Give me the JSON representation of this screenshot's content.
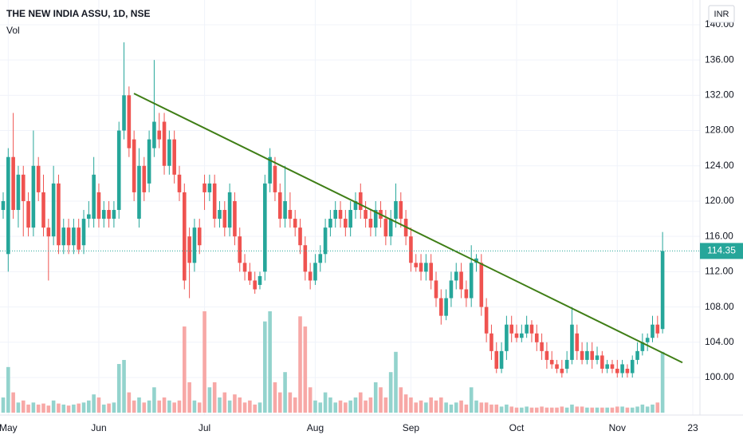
{
  "chart_data": {
    "type": "candlestick",
    "title": "THE NEW INDIA ASSU, 1D, NSE",
    "volume_label": "Vol",
    "currency": "INR",
    "up_color": "#26a69a",
    "down_color": "#ef5350",
    "up_volume_color": "#93d3cd",
    "down_volume_color": "#f7a8a6",
    "ylim": [
      96.2,
      142.8
    ],
    "yticks": [
      {
        "value": 100,
        "label": "100.00"
      },
      {
        "value": 104,
        "label": "104.00"
      },
      {
        "value": 108,
        "label": "108.00"
      },
      {
        "value": 112,
        "label": "112.00"
      },
      {
        "value": 116,
        "label": "116.00"
      },
      {
        "value": 120,
        "label": "120.00"
      },
      {
        "value": 124,
        "label": "124.00"
      },
      {
        "value": 128,
        "label": "128.00"
      },
      {
        "value": 132,
        "label": "132.00"
      },
      {
        "value": 136,
        "label": "136.00"
      },
      {
        "value": 140,
        "label": "140.00"
      }
    ],
    "last_price": 114.35,
    "trendline": {
      "values": [
        132.2,
        101.7
      ],
      "color": "#3f7e16"
    },
    "categories": [
      null,
      "May",
      null,
      null,
      null,
      null,
      null,
      null,
      null,
      null,
      null,
      null,
      null,
      null,
      null,
      null,
      null,
      null,
      null,
      "Jun",
      null,
      null,
      null,
      null,
      null,
      null,
      null,
      null,
      null,
      null,
      null,
      null,
      null,
      null,
      null,
      null,
      null,
      null,
      null,
      null,
      "Jul",
      null,
      null,
      null,
      null,
      null,
      null,
      null,
      null,
      null,
      null,
      null,
      null,
      null,
      null,
      null,
      null,
      null,
      null,
      null,
      null,
      null,
      "Aug",
      null,
      null,
      null,
      null,
      null,
      null,
      null,
      null,
      null,
      null,
      null,
      null,
      null,
      null,
      null,
      null,
      null,
      null,
      "Sep",
      null,
      null,
      null,
      null,
      null,
      null,
      null,
      null,
      null,
      null,
      null,
      null,
      null,
      null,
      null,
      null,
      null,
      null,
      null,
      null,
      "Oct",
      null,
      null,
      null,
      null,
      null,
      null,
      null,
      null,
      null,
      null,
      null,
      null,
      null,
      null,
      null,
      null,
      null,
      null,
      null,
      "Nov",
      null,
      null,
      null,
      null,
      null,
      null,
      null,
      null,
      null,
      null,
      null,
      null,
      null,
      null,
      "23"
    ],
    "open": [
      119,
      114,
      125,
      119,
      123,
      120,
      117,
      124,
      121,
      117,
      116,
      122,
      115,
      117,
      115,
      117,
      115,
      118,
      118,
      121,
      118,
      119,
      118,
      119,
      128,
      132,
      127,
      118,
      124,
      122,
      126,
      128,
      129,
      124,
      127,
      123,
      121,
      116,
      113,
      117,
      122,
      121,
      122,
      118,
      119,
      117,
      120,
      116,
      113,
      112,
      111,
      110.5,
      112,
      122,
      124,
      121,
      118,
      119,
      118,
      117,
      115,
      112,
      111,
      113,
      114,
      117,
      118,
      119,
      118,
      117,
      119,
      121,
      119,
      118,
      117,
      119,
      118,
      116,
      118,
      120,
      118,
      116,
      113,
      113,
      112,
      113,
      111,
      109,
      107,
      109,
      111,
      112,
      110,
      109,
      113,
      113,
      108,
      105,
      103,
      101,
      103,
      106,
      105,
      104.5,
      105,
      106,
      105,
      104,
      103,
      102,
      101.5,
      101,
      101,
      102,
      105,
      103,
      102,
      103,
      102,
      102.5,
      101,
      101.5,
      101,
      100.5,
      101,
      100.5,
      102,
      103,
      104,
      104.5,
      106,
      105.5,
      null,
      null,
      null,
      null,
      null,
      null
    ],
    "high": [
      121,
      126,
      130,
      124,
      124,
      121,
      128,
      125,
      123,
      118,
      124,
      123,
      118,
      118,
      118,
      118,
      119,
      120,
      125,
      122,
      120,
      120,
      120,
      129,
      138,
      133,
      128,
      126,
      125,
      128,
      136,
      130,
      130,
      128,
      128,
      124,
      122,
      117,
      118,
      118,
      123,
      123,
      123,
      120,
      120,
      122,
      121,
      117,
      114,
      113,
      112,
      112,
      123,
      126,
      125,
      122,
      124,
      121,
      119,
      118,
      116,
      113,
      114,
      115,
      118,
      119,
      120,
      120,
      119,
      120,
      121,
      122,
      120,
      119,
      120,
      120,
      119,
      119,
      122,
      121,
      119,
      117,
      114,
      114,
      114,
      114,
      112,
      110,
      110,
      112,
      113,
      113,
      111,
      115,
      114,
      114,
      109,
      106,
      104,
      104,
      107,
      107,
      106,
      106,
      107,
      106.5,
      106,
      105,
      104,
      103,
      102,
      102,
      103,
      108,
      106,
      104,
      104,
      104,
      103.5,
      103,
      102,
      102,
      102,
      102,
      101.5,
      102.5,
      104,
      105,
      105,
      107,
      107,
      116.5,
      null,
      null,
      null,
      null,
      null,
      null
    ],
    "low": [
      118,
      112,
      118,
      117,
      116,
      116,
      116,
      120,
      116,
      111,
      115,
      114,
      114,
      114,
      114,
      114,
      114,
      117,
      117,
      117,
      117,
      117,
      117,
      118,
      127,
      125,
      120,
      117,
      120,
      121,
      125,
      126,
      123,
      123,
      122,
      120,
      110,
      109,
      112,
      114,
      119,
      120,
      117,
      117,
      116,
      116,
      115,
      112,
      111,
      110.5,
      109.5,
      110,
      111,
      121,
      120,
      117,
      117,
      117,
      116,
      114,
      111,
      110,
      110.5,
      112,
      113,
      116,
      117,
      117,
      116,
      116,
      118,
      118,
      117,
      116,
      116,
      117,
      115,
      115,
      117,
      117,
      115,
      112,
      112,
      111,
      111,
      110,
      108,
      106,
      106.5,
      108,
      110,
      109,
      108,
      108,
      112,
      107,
      104,
      102,
      100.5,
      100.5,
      102,
      104,
      104,
      104,
      104.5,
      104,
      103,
      102,
      101,
      101,
      100.5,
      100,
      100.5,
      101.5,
      102,
      101.5,
      101.5,
      101,
      101.5,
      100.5,
      100.5,
      100.5,
      100,
      100,
      100,
      100,
      101.5,
      102.5,
      103,
      104,
      104.5,
      105,
      null,
      null,
      null,
      null,
      null,
      null
    ],
    "close": [
      120,
      125,
      119,
      123,
      120,
      117,
      124,
      121,
      117,
      116,
      122,
      115,
      117,
      115,
      117,
      114.5,
      118,
      118.5,
      123,
      118,
      119,
      118,
      119,
      128,
      132,
      126,
      121,
      124,
      121,
      127,
      129,
      127,
      124,
      127,
      123,
      121,
      111,
      113,
      117,
      115,
      121,
      122,
      118,
      119,
      117,
      121,
      116,
      113,
      112,
      111,
      110,
      111.5,
      122,
      125,
      121,
      118,
      120,
      118,
      117,
      115,
      112,
      111,
      113,
      114,
      117,
      118,
      119,
      118,
      117,
      119,
      120,
      119,
      118,
      117,
      119,
      118,
      116,
      118,
      120,
      118,
      116,
      113,
      112.5,
      112,
      113,
      111,
      109,
      107,
      109,
      111,
      112,
      110,
      109,
      113,
      113.5,
      108,
      105,
      103,
      101,
      103,
      106,
      105,
      104.5,
      105,
      106,
      105,
      104,
      103,
      102,
      101.5,
      101,
      100.5,
      102,
      106,
      103,
      102,
      103,
      102,
      102.5,
      101,
      101.5,
      101,
      100.5,
      101.5,
      100.5,
      102,
      103,
      104,
      104.5,
      106,
      105,
      114.35,
      null,
      null,
      null,
      null,
      null,
      null
    ],
    "volume": [
      15,
      45,
      20,
      10,
      12,
      8,
      10,
      8,
      9,
      7,
      12,
      9,
      8,
      7,
      8,
      9,
      10,
      12,
      18,
      15,
      8,
      9,
      10,
      48,
      52,
      20,
      12,
      15,
      10,
      12,
      25,
      12,
      15,
      12,
      10,
      12,
      85,
      30,
      12,
      10,
      100,
      25,
      30,
      15,
      20,
      12,
      18,
      15,
      10,
      12,
      8,
      10,
      90,
      100,
      30,
      20,
      40,
      20,
      15,
      95,
      85,
      25,
      12,
      10,
      20,
      15,
      10,
      12,
      10,
      12,
      15,
      20,
      12,
      15,
      30,
      25,
      15,
      40,
      60,
      25,
      18,
      15,
      10,
      12,
      10,
      15,
      12,
      15,
      10,
      8,
      10,
      12,
      8,
      25,
      12,
      10,
      10,
      8,
      8,
      6,
      8,
      6,
      5,
      5,
      6,
      5,
      5,
      6,
      5,
      5,
      5,
      6,
      5,
      8,
      6,
      6,
      5,
      5,
      5,
      5,
      5,
      5,
      6,
      6,
      5,
      5,
      6,
      8,
      6,
      8,
      10,
      60,
      null,
      null,
      null,
      null,
      null,
      null
    ]
  }
}
